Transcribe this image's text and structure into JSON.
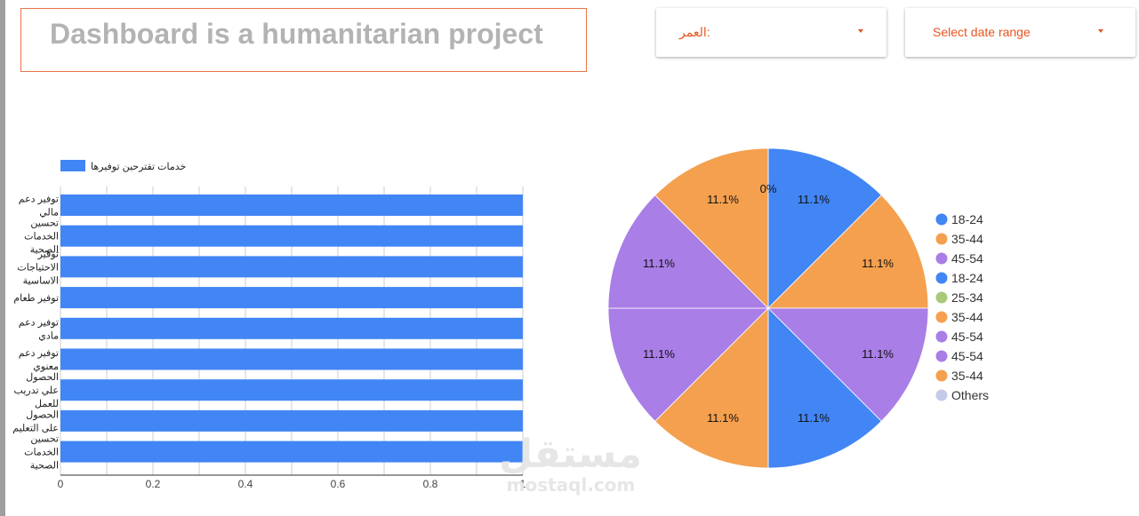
{
  "header": {
    "title": "Dashboard is a humanitarian project"
  },
  "filters": {
    "age": {
      "label": "العمر:"
    },
    "date": {
      "label": "Select date range"
    }
  },
  "watermark": {
    "arabic": "مستقل",
    "latin": "mostaql.com"
  },
  "chart_data": [
    {
      "type": "bar",
      "orientation": "horizontal",
      "title": "",
      "legend": {
        "position": "top-left",
        "entries": [
          "خدمات تقترحين توفيرها"
        ]
      },
      "categories": [
        [
          "توفير دعم",
          "مالي"
        ],
        [
          "تحسين",
          "الخدمات",
          "الصحية"
        ],
        [
          "توفير",
          "الاحتياجات",
          "الاساسية"
        ],
        [
          "توفير طعام"
        ],
        [
          "توفير دعم",
          "مادي"
        ],
        [
          "توفير دعم",
          "معنوي"
        ],
        [
          "الحصول",
          "علي تدريب",
          "للعمل"
        ],
        [
          "الحصول",
          "على التعليم"
        ],
        [
          "تحسين",
          "الخدمات",
          "الصحية"
        ]
      ],
      "series": [
        {
          "name": "خدمات تقترحين توفيرها",
          "values": [
            1,
            1,
            1,
            1,
            1,
            1,
            1,
            1,
            1
          ],
          "color": "#4285f4"
        }
      ],
      "xlim": [
        0,
        1
      ],
      "xticks": [
        "0",
        "0.2",
        "0.4",
        "0.6",
        "0.8",
        "1"
      ],
      "grid": true
    },
    {
      "type": "pie",
      "title": "",
      "legend": {
        "position": "right"
      },
      "slices": [
        {
          "label": "18-24",
          "value": 11.1,
          "display": "11.1%",
          "color": "#4285f4"
        },
        {
          "label": "35-44",
          "value": 11.1,
          "display": "11.1%",
          "color": "#f4a04f"
        },
        {
          "label": "45-54",
          "value": 11.1,
          "display": "11.1%",
          "color": "#a97ee6"
        },
        {
          "label": "18-24",
          "value": 11.1,
          "display": "11.1%",
          "color": "#4285f4"
        },
        {
          "label": "25-34",
          "value": 0,
          "display": "0%",
          "color": "#a8c87a"
        },
        {
          "label": "35-44",
          "value": 11.1,
          "display": "11.1%",
          "color": "#f4a04f"
        },
        {
          "label": "45-54",
          "value": 11.1,
          "display": "11.1%",
          "color": "#a97ee6"
        },
        {
          "label": "45-54",
          "value": 11.1,
          "display": "11.1%",
          "color": "#a97ee6"
        },
        {
          "label": "35-44",
          "value": 11.1,
          "display": "11.1%",
          "color": "#f4a04f"
        },
        {
          "label": "Others",
          "value": 0,
          "display": "",
          "color": "#c5cae9"
        }
      ],
      "clockwise_order": [
        "18-24",
        "35-44",
        "45-54",
        "18-24",
        "35-44",
        "45-54",
        "45-54",
        "35-44",
        "0%"
      ]
    }
  ]
}
